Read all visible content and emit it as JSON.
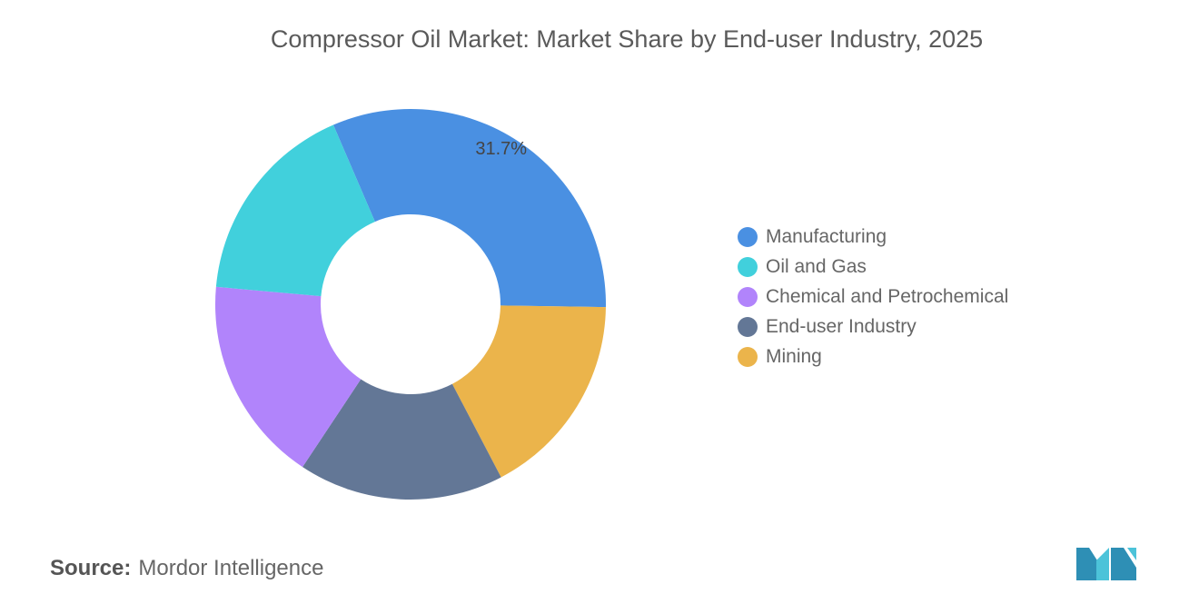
{
  "chart_data": {
    "type": "pie",
    "donut": true,
    "title": "Compressor Oil Market: Market Share by End-user Industry, 2025",
    "legend_position": "right",
    "slices": [
      {
        "label": "Manufacturing",
        "value": 31.7,
        "color": "#4a90e2",
        "data_label": "31.7%"
      },
      {
        "label": "Oil and Gas",
        "value": 17.1,
        "color": "#41d0dc"
      },
      {
        "label": "Chemical and Petrochemical",
        "value": 17.1,
        "color": "#b184fb"
      },
      {
        "label": "End-user Industry",
        "value": 17.0,
        "color": "#637796"
      },
      {
        "label": "Mining",
        "value": 17.1,
        "color": "#ebb44b"
      }
    ],
    "draw_order_clockwise": [
      "Manufacturing",
      "Mining",
      "End-user Industry",
      "Chemical and Petrochemical",
      "Oil and Gas"
    ]
  },
  "source": {
    "label": "Source:",
    "value": "Mordor Intelligence"
  },
  "logo": {
    "text": "Mordor Intelligence logo",
    "color": "#3aa9c4"
  }
}
